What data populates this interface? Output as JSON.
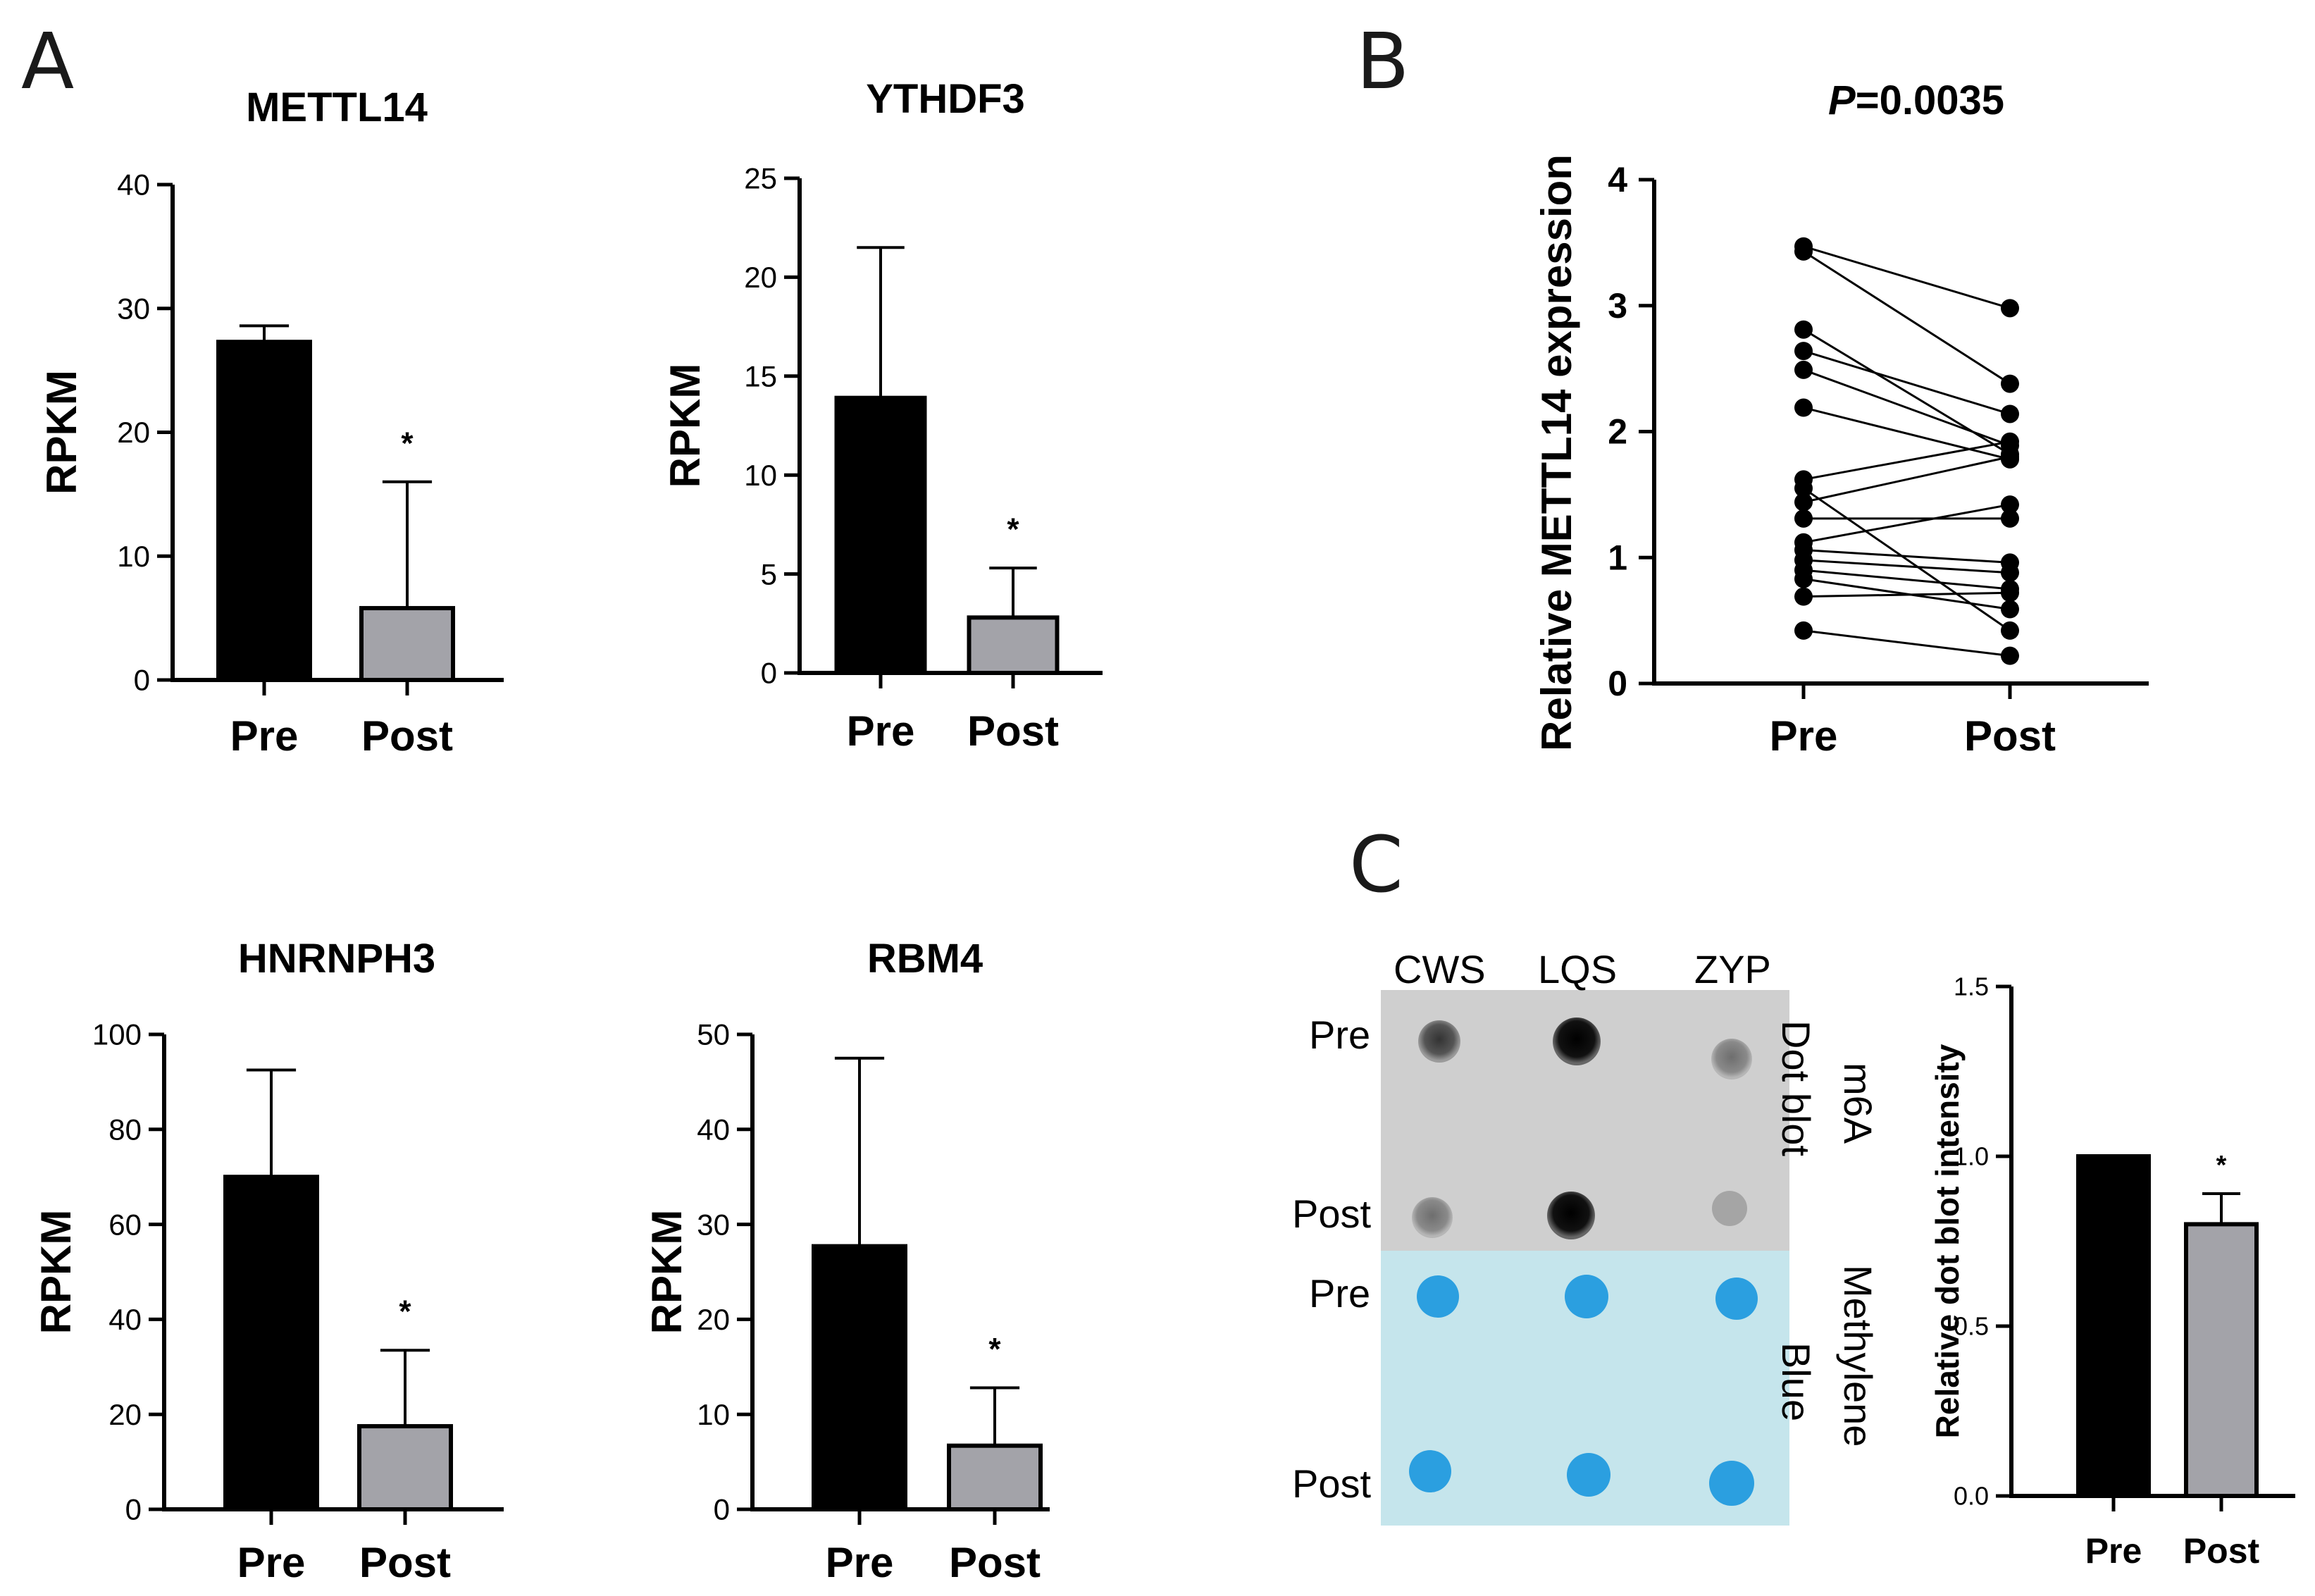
{
  "panels": {
    "a": "A",
    "b": "B",
    "c": "C"
  },
  "colors": {
    "pre": "#000000",
    "post": "#a3a3a9",
    "membrane_top": "#cfcfcf",
    "membrane_bottom": "#c5e5ec",
    "dot_blue": "#2b9fe0"
  },
  "chart_data": [
    {
      "id": "mettl14",
      "type": "bar",
      "title": "METTL14",
      "ylabel": "RPKM",
      "categories": [
        "Pre",
        "Post"
      ],
      "values": [
        27.3,
        5.8
      ],
      "errors": [
        1.3,
        10.2
      ],
      "significance": [
        "",
        "*"
      ],
      "ylim": [
        0,
        40
      ],
      "yticks": [
        "0",
        "10",
        "20",
        "30",
        "40"
      ]
    },
    {
      "id": "ythdf3",
      "type": "bar",
      "title": "YTHDF3",
      "ylabel": "RPKM",
      "categories": [
        "Pre",
        "Post"
      ],
      "values": [
        13.9,
        2.8
      ],
      "errors": [
        7.6,
        2.5
      ],
      "significance": [
        "",
        "*"
      ],
      "ylim": [
        0,
        25
      ],
      "yticks": [
        "0",
        "5",
        "10",
        "15",
        "20",
        "25"
      ]
    },
    {
      "id": "hnrnph3",
      "type": "bar",
      "title": "HNRNPH3",
      "ylabel": "RPKM",
      "categories": [
        "Pre",
        "Post"
      ],
      "values": [
        70,
        17.5
      ],
      "errors": [
        22.5,
        16
      ],
      "significance": [
        "",
        "*"
      ],
      "ylim": [
        0,
        100
      ],
      "yticks": [
        "0",
        "20",
        "40",
        "60",
        "80",
        "100"
      ]
    },
    {
      "id": "rbm4",
      "type": "bar",
      "title": "RBM4",
      "ylabel": "RPKM",
      "categories": [
        "Pre",
        "Post"
      ],
      "values": [
        27.7,
        6.7
      ],
      "errors": [
        19.8,
        6.1
      ],
      "significance": [
        "",
        "*"
      ],
      "ylim": [
        0,
        50
      ],
      "yticks": [
        "0",
        "10",
        "20",
        "30",
        "40",
        "50"
      ]
    },
    {
      "id": "paired",
      "type": "line",
      "title_italic": "P",
      "title_rest": "=0.0035",
      "ylabel": "Relative  METTL14 expression",
      "categories": [
        "Pre",
        "Post"
      ],
      "ylim": [
        0,
        4
      ],
      "yticks": [
        "0",
        "1",
        "2",
        "3",
        "4"
      ],
      "pairs": [
        [
          3.47,
          2.98
        ],
        [
          3.43,
          2.38
        ],
        [
          2.81,
          1.82
        ],
        [
          2.64,
          2.14
        ],
        [
          2.49,
          1.89
        ],
        [
          2.19,
          1.78
        ],
        [
          1.62,
          1.92
        ],
        [
          1.55,
          0.42
        ],
        [
          1.44,
          1.8
        ],
        [
          1.31,
          1.31
        ],
        [
          1.12,
          1.42
        ],
        [
          1.06,
          0.96
        ],
        [
          0.98,
          0.88
        ],
        [
          0.9,
          0.75
        ],
        [
          0.83,
          0.59
        ],
        [
          0.69,
          0.72
        ],
        [
          0.42,
          0.22
        ]
      ]
    },
    {
      "id": "dotblot_intensity",
      "type": "bar",
      "ylabel": "Relative dot blot intensity",
      "categories": [
        "Pre",
        "Post"
      ],
      "values": [
        1.0,
        0.8
      ],
      "errors": [
        0,
        0.09
      ],
      "significance": [
        "",
        "*"
      ],
      "ylim": [
        0,
        1.5
      ],
      "yticks": [
        "0.0",
        "0.5",
        "1.0",
        "1.5"
      ]
    }
  ],
  "blot": {
    "samples": [
      "CWS",
      "LQS",
      "ZYP"
    ],
    "rows": [
      "Pre",
      "Post",
      "Pre",
      "Post"
    ],
    "top_label_1": "m6A",
    "top_label_2": "Dot blot",
    "bottom_label_1": "Methylene",
    "bottom_label_2": "Blue"
  }
}
